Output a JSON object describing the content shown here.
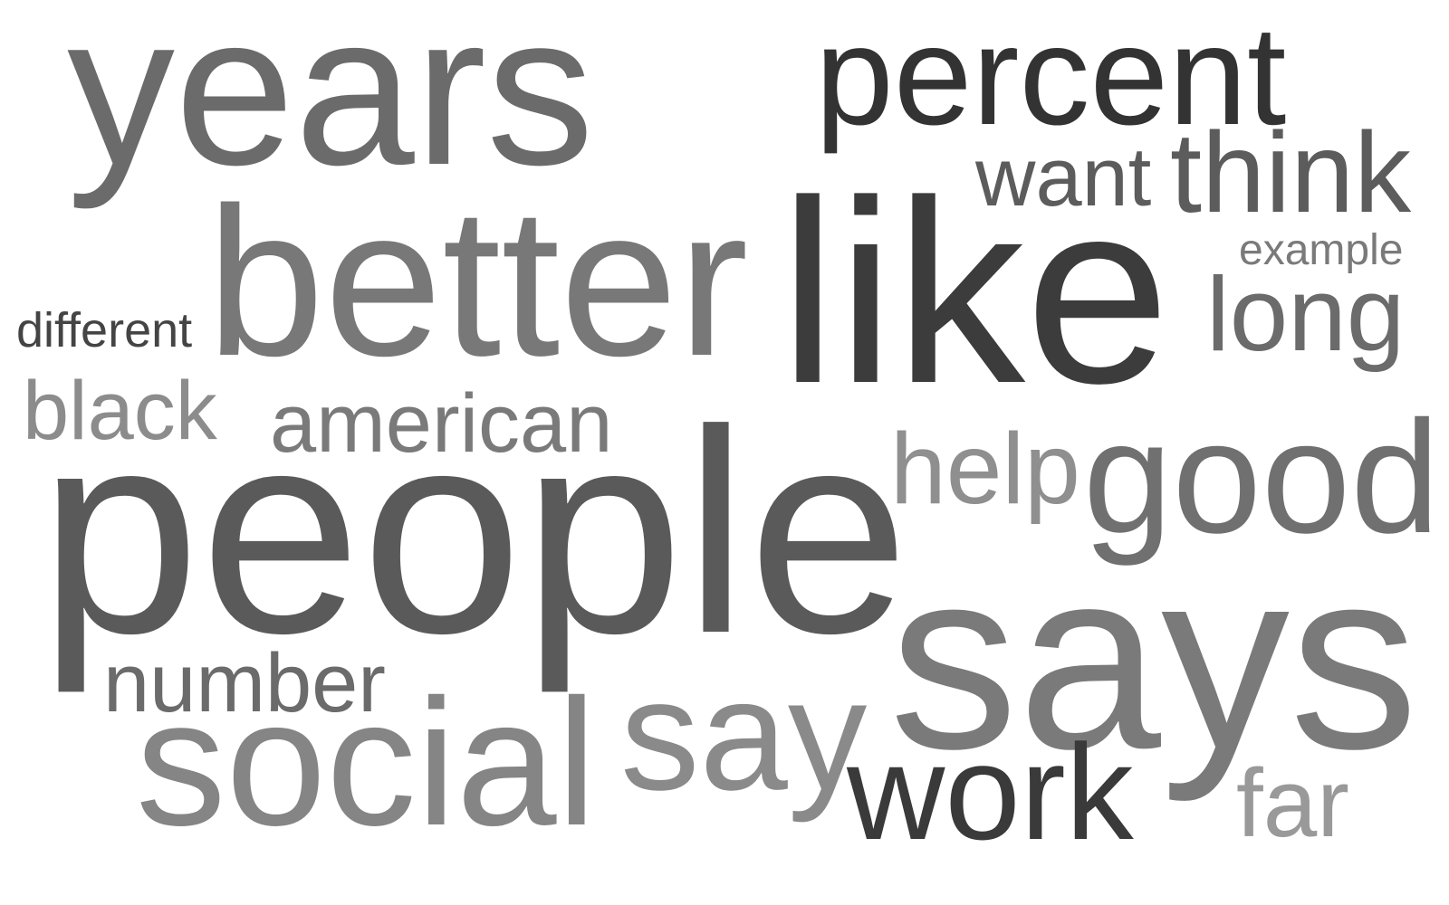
{
  "words": [
    {
      "text": "years",
      "color": "#6b6b6b"
    },
    {
      "text": "percent",
      "color": "#333333"
    },
    {
      "text": "want",
      "color": "#5c5c5c"
    },
    {
      "text": "think",
      "color": "#5c5c5c"
    },
    {
      "text": "better",
      "color": "#787878"
    },
    {
      "text": "like",
      "color": "#3c3c3c"
    },
    {
      "text": "example",
      "color": "#7a7a7a"
    },
    {
      "text": "different",
      "color": "#444444"
    },
    {
      "text": "long",
      "color": "#6b6b6b"
    },
    {
      "text": "black",
      "color": "#8c8c8c"
    },
    {
      "text": "american",
      "color": "#7a7a7a"
    },
    {
      "text": "help",
      "color": "#8f8f8f"
    },
    {
      "text": "good",
      "color": "#707070"
    },
    {
      "text": "people",
      "color": "#5a5a5a"
    },
    {
      "text": "says",
      "color": "#7a7a7a"
    },
    {
      "text": "number",
      "color": "#6b6b6b"
    },
    {
      "text": "say",
      "color": "#8a8a8a"
    },
    {
      "text": "social",
      "color": "#858585"
    },
    {
      "text": "work",
      "color": "#3a3a3a"
    },
    {
      "text": "far",
      "color": "#999999"
    }
  ]
}
